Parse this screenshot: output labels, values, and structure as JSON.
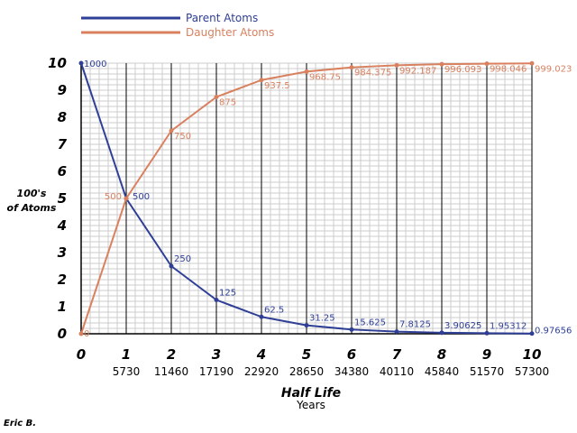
{
  "chart_data": {
    "type": "line",
    "title": "",
    "ylabel_line1": "100's",
    "ylabel_line2": "of Atoms",
    "xlabel": "Half Life",
    "xlabel_sub": "Years",
    "author": "Eric B.",
    "x": [
      0,
      1,
      2,
      3,
      4,
      5,
      6,
      7,
      8,
      9,
      10
    ],
    "x_years": [
      "",
      "5730",
      "11460",
      "17190",
      "22920",
      "28650",
      "34380",
      "40110",
      "45840",
      "51570",
      "57300"
    ],
    "ylim": [
      0,
      10
    ],
    "xlim": [
      0,
      10
    ],
    "yticks": [
      0,
      1,
      2,
      3,
      4,
      5,
      6,
      7,
      8,
      9,
      10
    ],
    "grid": true,
    "legend_position": "top-left",
    "series": [
      {
        "name": "Parent Atoms",
        "color": "#2e3f95",
        "values": [
          10,
          5,
          2.5,
          1.25,
          0.625,
          0.3125,
          0.15625,
          0.078125,
          0.0390625,
          0.0195312,
          0.0097656
        ],
        "labels": [
          "1000",
          "500",
          "250",
          "125",
          "62.5",
          "31.25",
          "15.625",
          "7.8125",
          "3.90625",
          "1.95312",
          "0.97656"
        ]
      },
      {
        "name": "Daughter Atoms",
        "color": "#d9805f",
        "values": [
          0,
          5,
          7.5,
          8.75,
          9.375,
          9.6875,
          9.84375,
          9.92187,
          9.96093,
          9.98046,
          9.99023
        ],
        "labels": [
          "0",
          "500",
          "750",
          "875",
          "937.5",
          "968.75",
          "984.375",
          "992.187",
          "996.093",
          "998.046",
          "999.023"
        ]
      }
    ]
  }
}
